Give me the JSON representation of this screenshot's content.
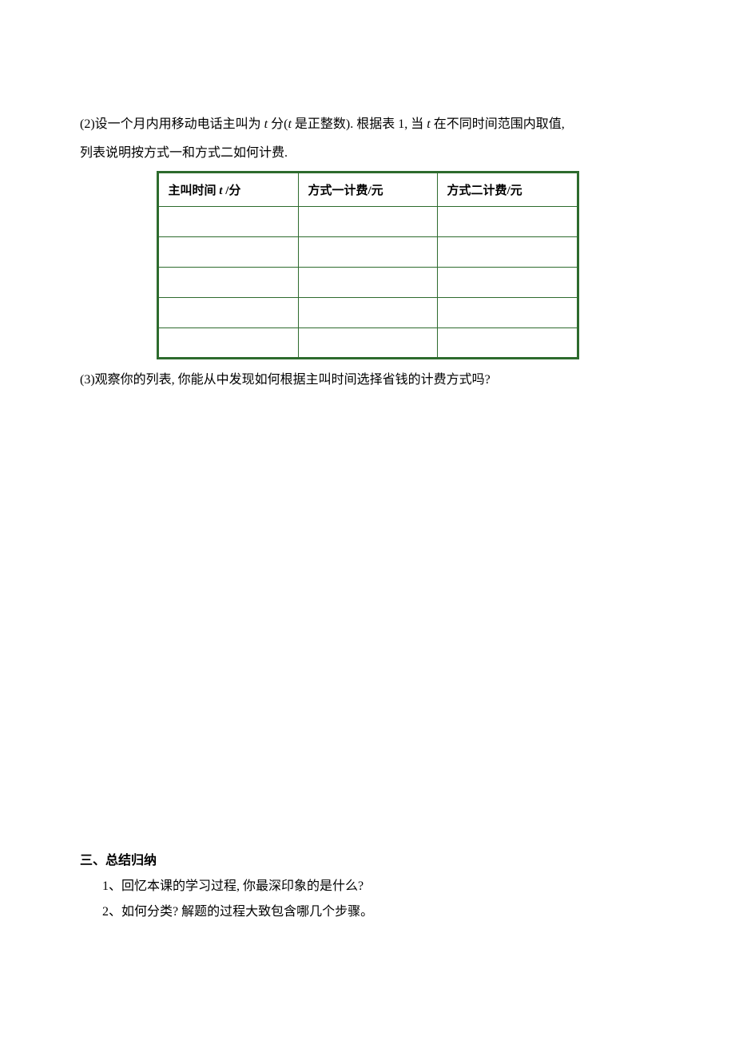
{
  "paragraph2": {
    "prefix": "(2)设一个月内用移动电话主叫为 ",
    "t1": "t",
    "mid1": " 分(",
    "t2": "t",
    "mid2": " 是正整数). 根据表 1, 当 ",
    "t3": "t",
    "suffix": " 在不同时间范围内取值,"
  },
  "paragraph2_line2": "列表说明按方式一和方式二如何计费.",
  "table": {
    "headers": {
      "col1_prefix": "主叫时间 ",
      "col1_t": "t",
      "col1_suffix": " /分",
      "col2": "方式一计费/元",
      "col3": "方式二计费/元"
    },
    "rows": 5,
    "border_color": "#2d6b2d"
  },
  "question3": "(3)观察你的列表, 你能从中发现如何根据主叫时间选择省钱的计费方式吗?",
  "section": {
    "header": "三、总结归纳",
    "items": [
      "1、回忆本课的学习过程, 你最深印象的是什么?",
      "2、如何分类? 解题的过程大致包含哪几个步骤。"
    ]
  }
}
